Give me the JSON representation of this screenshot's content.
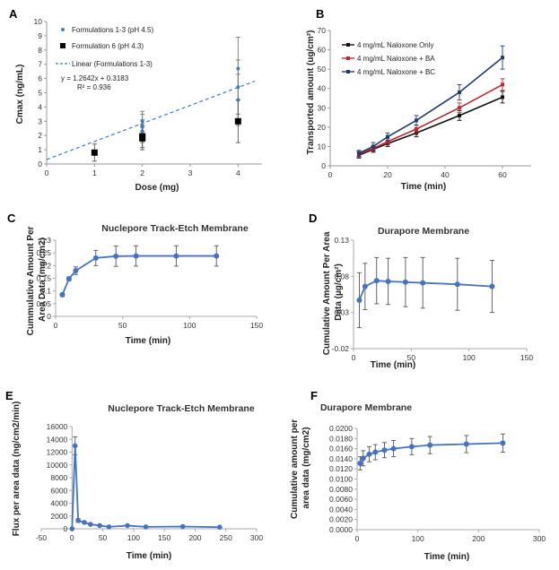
{
  "chart_data": [
    {
      "panel": "A",
      "type": "scatter",
      "title": "",
      "xlabel": "Dose (mg)",
      "ylabel": "Cmax (ng/mL)",
      "xlim": [
        0,
        4.5
      ],
      "ylim": [
        0,
        10
      ],
      "xticks": [
        "0",
        "1",
        "2",
        "3",
        "4"
      ],
      "yticks": [
        "0",
        "1",
        "2",
        "3",
        "4",
        "5",
        "6",
        "7",
        "8",
        "9",
        "10"
      ],
      "grid": false,
      "legend_position": "top-left",
      "series": [
        {
          "name": "Formulations 1-3 (pH 4.5)",
          "color": "#3b7dc4",
          "marker": "dot",
          "x": [
            2,
            2,
            2,
            4,
            4,
            4
          ],
          "y": [
            2.3,
            2.6,
            3.0,
            4.5,
            5.4,
            6.7
          ],
          "err": [
            0.8,
            0.9,
            0.7,
            1.8,
            1.9,
            2.2
          ]
        },
        {
          "name": "Formulation 6 (pH 4.3)",
          "color": "#000000",
          "marker": "square",
          "x": [
            1,
            2,
            2,
            4
          ],
          "y": [
            0.8,
            1.8,
            1.95,
            3.0
          ],
          "err": [
            0.6,
            0.8,
            0.8,
            1.5
          ]
        }
      ],
      "fit": {
        "name": "Linear (Formulations 1-3)",
        "slope": 1.2642,
        "intercept": 0.3183,
        "color": "#3b7dc4"
      },
      "annotations": [
        "y = 1.2642x + 0.3183",
        "R² = 0.936"
      ]
    },
    {
      "panel": "B",
      "type": "line",
      "title": "",
      "xlabel": "Time (min)",
      "ylabel": "Transported amount (ug/cm²)",
      "xlim": [
        0,
        70
      ],
      "ylim": [
        0,
        70
      ],
      "xticks": [
        "0",
        "20",
        "40",
        "60"
      ],
      "yticks": [
        "0",
        "10",
        "20",
        "30",
        "40",
        "50",
        "60",
        "70"
      ],
      "grid": false,
      "legend_position": "top-left",
      "x": [
        10,
        15,
        20,
        30,
        45,
        60
      ],
      "series": [
        {
          "name": "4 mg/mL Naloxone Only",
          "color": "#111111",
          "values": [
            5.5,
            8.5,
            11.5,
            17,
            26,
            35.5
          ],
          "err": [
            1.5,
            1.5,
            1.5,
            2,
            2.5,
            3
          ]
        },
        {
          "name": "4 mg/mL Naloxone + BA",
          "color": "#c0282d",
          "values": [
            6,
            9,
            12.5,
            19,
            30,
            42
          ],
          "err": [
            1.5,
            1.5,
            1.5,
            2,
            2.5,
            3
          ]
        },
        {
          "name": "4 mg/mL Naloxone + BC",
          "color": "#1f3b70",
          "values": [
            6.5,
            10,
            15,
            23.5,
            38,
            56
          ],
          "err": [
            1.5,
            2,
            2,
            2.5,
            4,
            6
          ]
        }
      ]
    },
    {
      "panel": "C",
      "type": "line",
      "title": "Nuclepore Track-Etch Membrane",
      "xlabel": "Time (min)",
      "ylabel": "Cummulative Amount Per Area Data (mg/cm2)",
      "xlim": [
        0,
        150
      ],
      "ylim": [
        0,
        0.3
      ],
      "xticks": [
        "0",
        "50",
        "100",
        "150"
      ],
      "yticks": [
        "0",
        "0.05",
        "0.1",
        "0.15",
        "0.2",
        "0.25",
        "0.3"
      ],
      "grid": false,
      "color": "#4472c4",
      "x": [
        5,
        10,
        15,
        30,
        45,
        60,
        90,
        120
      ],
      "values": [
        0.085,
        0.148,
        0.18,
        0.23,
        0.237,
        0.238,
        0.238,
        0.238
      ],
      "err": [
        0.007,
        0.008,
        0.015,
        0.03,
        0.04,
        0.04,
        0.04,
        0.04
      ]
    },
    {
      "panel": "D",
      "type": "line",
      "title": "Durapore Membrane",
      "xlabel": "Time (min)",
      "ylabel": "Cumulative Amount Per Area Data (µg/cm²)",
      "xlim": [
        0,
        150
      ],
      "ylim": [
        -0.02,
        0.13
      ],
      "xticks": [
        "0",
        "50",
        "100",
        "150"
      ],
      "yticks": [
        "-0.02",
        "0.03",
        "0.08",
        "0.13"
      ],
      "grid": false,
      "color": "#4472c4",
      "x": [
        5,
        10,
        20,
        30,
        45,
        60,
        90,
        120
      ],
      "values": [
        0.047,
        0.066,
        0.074,
        0.073,
        0.072,
        0.071,
        0.069,
        0.066
      ],
      "err": [
        0.038,
        0.032,
        0.032,
        0.032,
        0.034,
        0.035,
        0.036,
        0.036
      ]
    },
    {
      "panel": "E",
      "type": "line",
      "title": "Nuclepore Track-Etch Membrane",
      "xlabel": "Time (min)",
      "ylabel": "Flux per area data (ng/cm2/min)",
      "xlim": [
        -50,
        300
      ],
      "ylim": [
        0,
        16000
      ],
      "xticks": [
        "-50",
        "0",
        "50",
        "100",
        "150",
        "200",
        "250",
        "300"
      ],
      "yticks": [
        "0",
        "2000",
        "4000",
        "6000",
        "8000",
        "10000",
        "12000",
        "14000",
        "16000"
      ],
      "grid": false,
      "color": "#4472c4",
      "x": [
        0,
        5,
        10,
        20,
        30,
        45,
        60,
        90,
        120,
        180,
        240
      ],
      "values": [
        0,
        13000,
        1300,
        1000,
        700,
        500,
        300,
        500,
        300,
        350,
        250
      ],
      "err": [
        0,
        1400,
        300,
        200,
        150,
        100,
        80,
        120,
        80,
        80,
        60
      ]
    },
    {
      "panel": "F",
      "type": "line",
      "title": "Durapore Membrane",
      "xlabel": "Time (min)",
      "ylabel": "Cumulative amount per area data (mg/cm2)",
      "xlim": [
        0,
        300
      ],
      "ylim": [
        0,
        0.02
      ],
      "xticks": [
        "0",
        "100",
        "200",
        "300"
      ],
      "yticks": [
        "0.0000",
        "0.0020",
        "0.0040",
        "0.0060",
        "0.0080",
        "0.0100",
        "0.0120",
        "0.0140",
        "0.0160",
        "0.0180",
        "0.0200"
      ],
      "grid": false,
      "color": "#4472c4",
      "x": [
        5,
        10,
        20,
        30,
        45,
        60,
        90,
        120,
        180,
        240
      ],
      "values": [
        0.0131,
        0.0141,
        0.0149,
        0.0153,
        0.0157,
        0.016,
        0.0164,
        0.0167,
        0.0169,
        0.0171
      ],
      "err": [
        0.0013,
        0.0015,
        0.0015,
        0.0015,
        0.0015,
        0.0016,
        0.0016,
        0.0017,
        0.0017,
        0.0018
      ]
    }
  ]
}
